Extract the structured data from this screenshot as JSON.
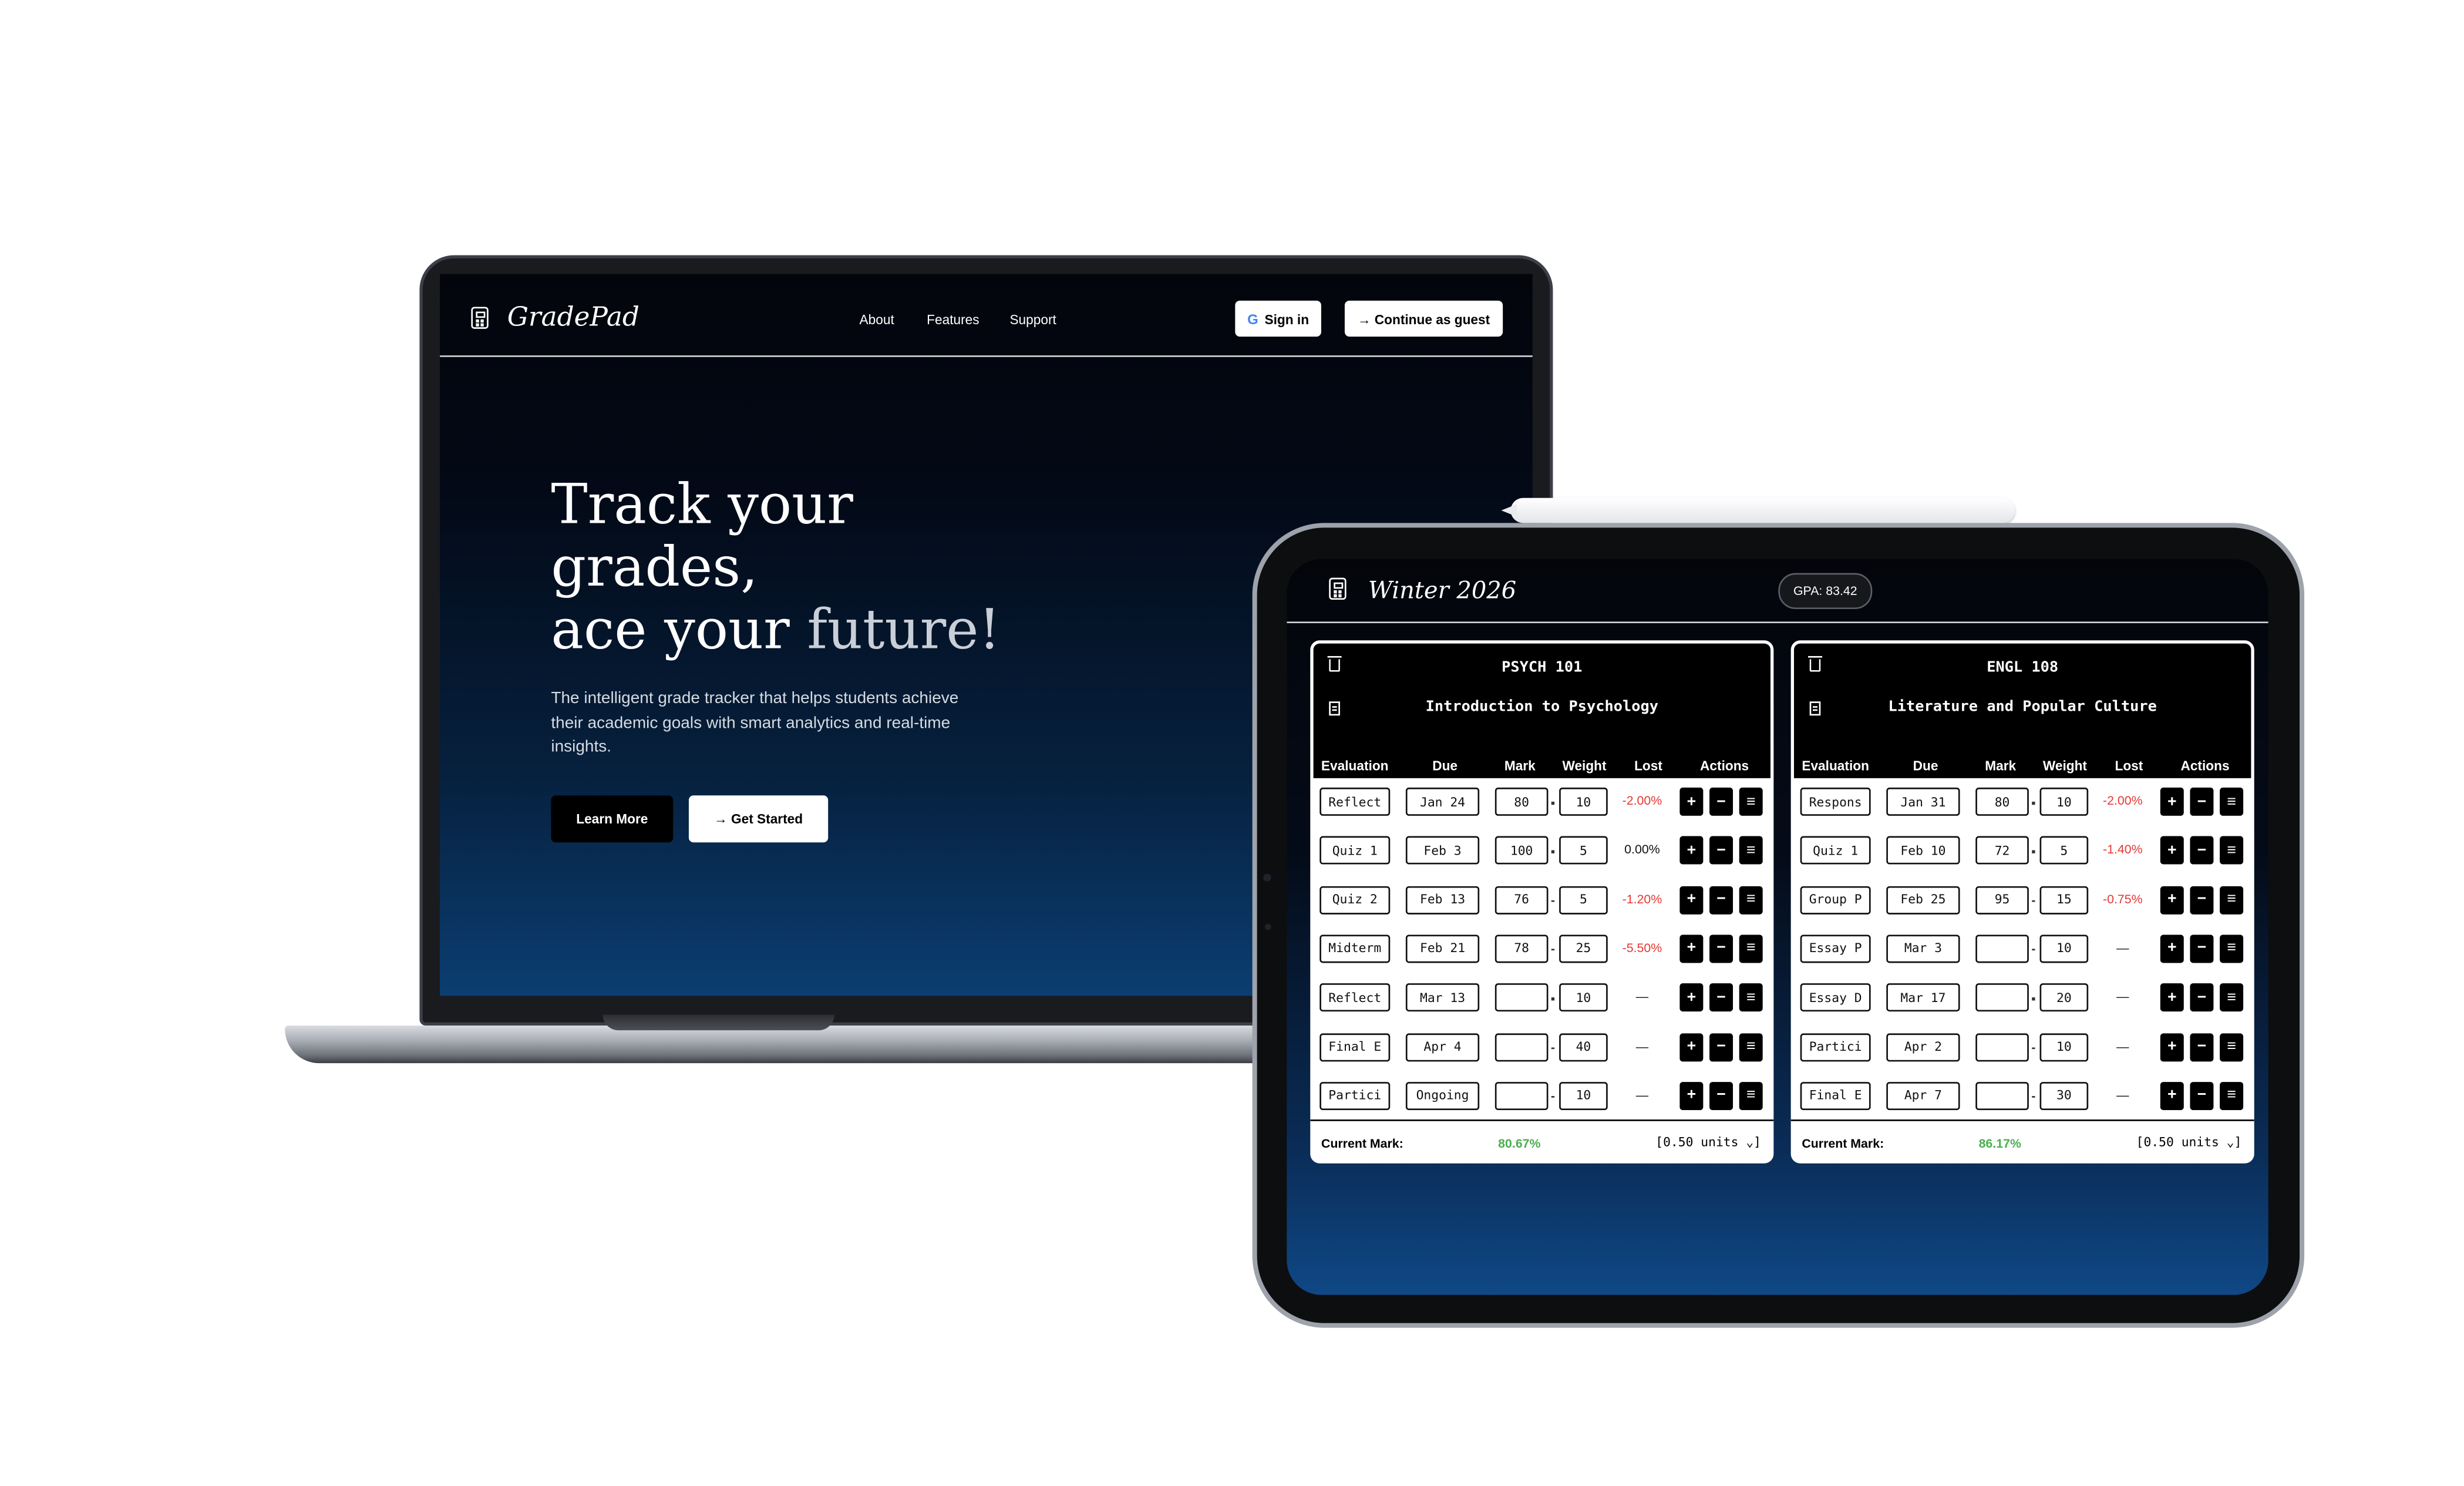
{
  "colors": {
    "accent_green": "#4caf50",
    "lost_red": "#e53935",
    "background_dark": "#03050b",
    "brand_blue": "#0b3e72"
  },
  "laptop": {
    "brand": "GradePad",
    "nav": [
      "About",
      "Features",
      "Support"
    ],
    "sign_in": "Sign in",
    "guest": "→ Continue as guest",
    "hero_line1": "Track your",
    "hero_line2": "grades,",
    "hero_line3a": "ace your ",
    "hero_line3b": "future!",
    "subtitle": "The intelligent grade tracker that helps students achieve their academic goals with smart analytics and real-time insights.",
    "learn_more": "Learn More",
    "get_started": "→ Get Started"
  },
  "tablet": {
    "term": "Winter 2026",
    "gpa": "GPA: 83.42",
    "columns": [
      "Evaluation",
      "Due",
      "Mark",
      "Weight",
      "Lost",
      "Actions"
    ],
    "action_icons": [
      "plus-icon",
      "minus-icon",
      "menu-icon"
    ],
    "action_glyphs": [
      "+",
      "−",
      "≡"
    ],
    "current_mark_label": "Current Mark:",
    "courses": [
      {
        "code": "PSYCH 101",
        "name": "Introduction to Psychology",
        "current_mark": "80.67%",
        "units": "[0.50 units ⌄]",
        "rows": [
          {
            "eval": "Reflect",
            "due": "Jan 24",
            "mark": "80",
            "weight": "10",
            "lost": "-2.00%"
          },
          {
            "eval": "Quiz 1",
            "due": "Feb 3",
            "mark": "100",
            "weight": "5",
            "lost": "0.00%"
          },
          {
            "eval": "Quiz 2",
            "due": "Feb 13",
            "mark": "76",
            "weight": "5",
            "lost": "-1.20%"
          },
          {
            "eval": "Midterm",
            "due": "Feb 21",
            "mark": "78",
            "weight": "25",
            "lost": "-5.50%"
          },
          {
            "eval": "Reflect",
            "due": "Mar 13",
            "mark": "",
            "weight": "10",
            "lost": "—"
          },
          {
            "eval": "Final E",
            "due": "Apr 4",
            "mark": "",
            "weight": "40",
            "lost": "—"
          },
          {
            "eval": "Partici",
            "due": "Ongoing",
            "mark": "",
            "weight": "10",
            "lost": "—"
          }
        ]
      },
      {
        "code": "ENGL 108",
        "name": "Literature and Popular Culture",
        "current_mark": "86.17%",
        "units": "[0.50 units ⌄]",
        "rows": [
          {
            "eval": "Respons",
            "due": "Jan 31",
            "mark": "80",
            "weight": "10",
            "lost": "-2.00%"
          },
          {
            "eval": "Quiz 1",
            "due": "Feb 10",
            "mark": "72",
            "weight": "5",
            "lost": "-1.40%"
          },
          {
            "eval": "Group P",
            "due": "Feb 25",
            "mark": "95",
            "weight": "15",
            "lost": "-0.75%"
          },
          {
            "eval": "Essay P",
            "due": "Mar 3",
            "mark": "",
            "weight": "10",
            "lost": "—"
          },
          {
            "eval": "Essay D",
            "due": "Mar 17",
            "mark": "",
            "weight": "20",
            "lost": "—"
          },
          {
            "eval": "Partici",
            "due": "Apr 2",
            "mark": "",
            "weight": "10",
            "lost": "—"
          },
          {
            "eval": "Final E",
            "due": "Apr 7",
            "mark": "",
            "weight": "30",
            "lost": "—"
          }
        ]
      }
    ]
  }
}
